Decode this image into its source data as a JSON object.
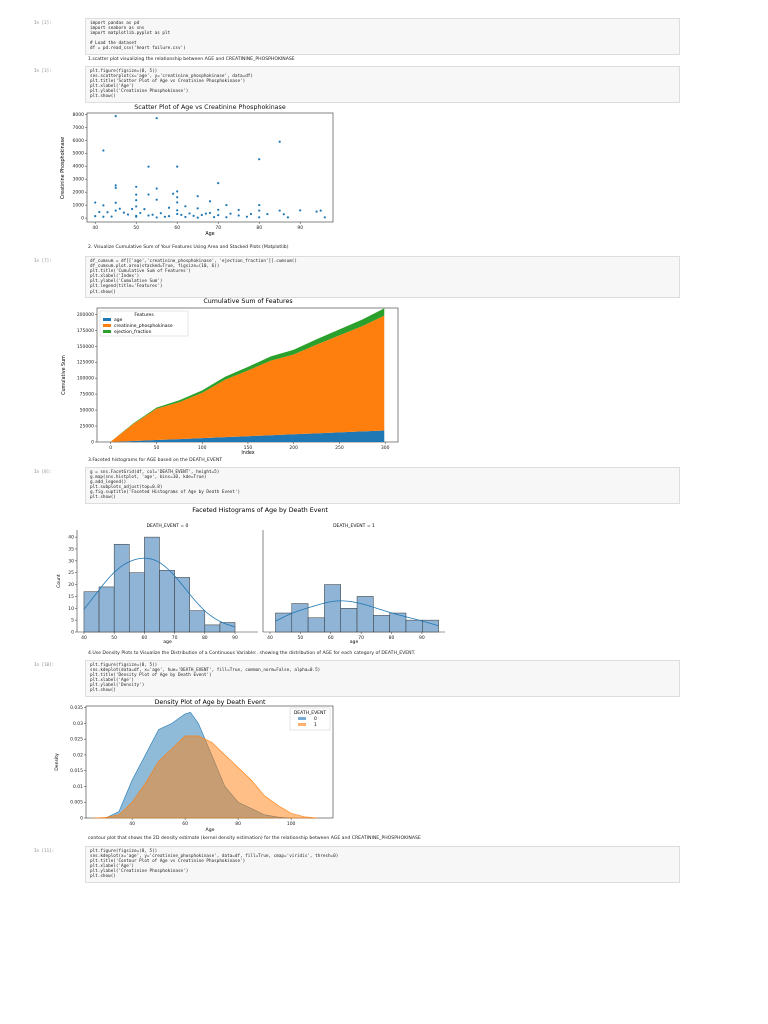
{
  "cells": [
    {
      "prompt": "In [2]:",
      "lines": [
        "import pandas as pd",
        "import seaborn as sns",
        "import matplotlib.pyplot as plt",
        "",
        "# Load the dataset",
        "df = pd.read_csv('heart failure.csv')"
      ]
    },
    {
      "prompt": "In [3]:",
      "lines": [
        "plt.figure(figsize=(8, 5))",
        "sns.scatterplot(x='age', y='creatinine_phosphokinase', data=df)",
        "plt.title('Scatter Plot of Age vs Creatinine Phosphokinase')",
        "plt.xlabel('Age')",
        "plt.ylabel('Creatinine Phosphokinase')",
        "plt.show()"
      ]
    },
    {
      "prompt": "In [7]:",
      "lines": [
        "df_cumsum = df[['age','creatinine_phosphokinase', 'ejection_fraction']].cumsum()",
        "df_cumsum.plot.area(stacked=True, figsize=(10, 6))",
        "plt.title('Cumulative Sum of Features')",
        "plt.xlabel('Index')",
        "plt.ylabel('Cumulative Sum')",
        "plt.legend(title='Features')",
        "plt.show()"
      ]
    },
    {
      "prompt": "In [8]:",
      "lines": [
        "g = sns.FacetGrid(df, col='DEATH_EVENT', height=5)",
        "g.map(sns.histplot, 'age', bins=10, kde=True)",
        "g.add_legend()",
        "plt.subplots_adjust(top=0.8)",
        "g.fig.suptitle('Faceted Histograms of Age by Death Event')",
        "plt.show()"
      ]
    },
    {
      "prompt": "In [10]:",
      "lines": [
        "plt.figure(figsize=(8, 5))",
        "sns.kdeplot(data=df, x='age', hue='DEATH_EVENT', fill=True, common_norm=False, alpha=0.5)",
        "plt.title('Density Plot of Age by Death Event')",
        "plt.xlabel('Age')",
        "plt.ylabel('Density')",
        "plt.show()"
      ]
    },
    {
      "prompt": "In [11]:",
      "lines": [
        "plt.figure(figsize=(8, 5))",
        "sns.kdeplot(x='age', y='creatinine_phosphokinase', data=df, fill=True, cmap='viridis', thresh=0)",
        "plt.title('Contour Plot of Age vs Creatinine Phosphokinase')",
        "plt.xlabel('Age')",
        "plt.ylabel('Creatinine Phosphokinase')",
        "plt.show()"
      ]
    }
  ],
  "markdown": [
    "1.scatter plot visualizing the relationship between AGE and CREATININE_PHOSPHOKINASE",
    "2. Visualize Cumulative Sum of Your Features Using Area and Stacked Plots (Matplotlib)",
    "3.Faceted histograms for AGE based on the DEATH_EVENT",
    "4.Use Density Plots to Visualize the Distribution of a Continuous Variable:. showing the distribution of AGE for each category of DEATH_EVENT.",
    "contour plot that shows the 2D density estimate (kernel density estimation) for the relationship between AGE and CREATININE_PHOSPHOKINASE"
  ],
  "chart_data": [
    {
      "type": "scatter",
      "title": "Scatter Plot of Age vs Creatinine Phosphokinase",
      "xlabel": "Age",
      "ylabel": "Creatinine Phosphokinase",
      "xlim": [
        38,
        98
      ],
      "ylim": [
        -300,
        8100
      ],
      "xticks": [
        40,
        50,
        60,
        70,
        80,
        90
      ],
      "yticks": [
        0,
        1000,
        2000,
        3000,
        4000,
        5000,
        6000,
        7000,
        8000
      ],
      "color": "#1f77b4",
      "points": [
        [
          45,
          7861
        ],
        [
          55,
          7702
        ],
        [
          42,
          5209
        ],
        [
          85,
          5882
        ],
        [
          80,
          4540
        ],
        [
          60,
          3966
        ],
        [
          53,
          3964
        ],
        [
          70,
          2695
        ],
        [
          45,
          2522
        ],
        [
          50,
          2413
        ],
        [
          55,
          2281
        ],
        [
          60,
          2060
        ],
        [
          45,
          2334
        ],
        [
          59,
          1876
        ],
        [
          50,
          1808
        ],
        [
          60,
          1610
        ],
        [
          65,
          1688
        ],
        [
          55,
          1419
        ],
        [
          53,
          1820
        ],
        [
          50,
          1380
        ],
        [
          60,
          1211
        ],
        [
          40,
          1199
        ],
        [
          45,
          1185
        ],
        [
          68,
          1300
        ],
        [
          72,
          1000
        ],
        [
          80,
          1000
        ],
        [
          62,
          910
        ],
        [
          50,
          900
        ],
        [
          42,
          980
        ],
        [
          58,
          800
        ],
        [
          46,
          720
        ],
        [
          49,
          700
        ],
        [
          65,
          750
        ],
        [
          52,
          690
        ],
        [
          70,
          640
        ],
        [
          60,
          600
        ],
        [
          75,
          630
        ],
        [
          80,
          582
        ],
        [
          85,
          580
        ],
        [
          90,
          600
        ],
        [
          95,
          581
        ],
        [
          94,
          500
        ],
        [
          41,
          470
        ],
        [
          43,
          450
        ],
        [
          47,
          420
        ],
        [
          51,
          400
        ],
        [
          56,
          380
        ],
        [
          63,
          360
        ],
        [
          67,
          350
        ],
        [
          73,
          340
        ],
        [
          78,
          320
        ],
        [
          82,
          310
        ],
        [
          86,
          300
        ],
        [
          48,
          280
        ],
        [
          54,
          260
        ],
        [
          61,
          250
        ],
        [
          66,
          240
        ],
        [
          70,
          230
        ],
        [
          75,
          200
        ],
        [
          40,
          150
        ],
        [
          44,
          120
        ],
        [
          50,
          110
        ],
        [
          57,
          100
        ],
        [
          62,
          90
        ],
        [
          69,
          80
        ],
        [
          72,
          70
        ],
        [
          80,
          60
        ],
        [
          87,
          60
        ],
        [
          55,
          50
        ],
        [
          65,
          40
        ],
        [
          58,
          150
        ],
        [
          60,
          320
        ],
        [
          64,
          170
        ],
        [
          53,
          200
        ],
        [
          45,
          580
        ],
        [
          50,
          170
        ],
        [
          42,
          102
        ],
        [
          96,
          60
        ],
        [
          68,
          400
        ],
        [
          77,
          109
        ]
      ]
    },
    {
      "type": "area",
      "title": "Cumulative Sum of Features",
      "xlabel": "Index",
      "ylabel": "Cumulative Sum",
      "legend_title": "Features",
      "legend_placement": "top-left",
      "xlim": [
        -15,
        314
      ],
      "ylim": [
        0,
        210000
      ],
      "xticks": [
        0,
        50,
        100,
        150,
        200,
        250,
        300
      ],
      "yticks": [
        0,
        25000,
        50000,
        75000,
        100000,
        125000,
        150000,
        175000,
        200000
      ],
      "x": [
        0,
        25,
        50,
        75,
        100,
        125,
        150,
        175,
        200,
        225,
        250,
        275,
        299
      ],
      "series": [
        {
          "name": "age",
          "color": "#1f77b4",
          "values": [
            75,
            1560,
            3060,
            4560,
            6060,
            7560,
            9060,
            10560,
            12060,
            13560,
            15060,
            16560,
            18000
          ]
        },
        {
          "name": "creatinine_phosphokinase",
          "color": "#ff7f0e",
          "values": [
            582,
            27000,
            49000,
            58000,
            71000,
            90000,
            103000,
            117000,
            125000,
            139000,
            152000,
            165000,
            180000
          ]
        },
        {
          "name": "ejection_fraction",
          "color": "#2ca02c",
          "values": [
            20,
            950,
            1900,
            2850,
            3800,
            4750,
            5700,
            6650,
            7600,
            8550,
            9500,
            10450,
            11400
          ]
        }
      ]
    },
    {
      "type": "bar",
      "title": "Faceted Histograms of Age by Death Event",
      "xlabel": "age",
      "ylabel": "Count",
      "color": "#1f77b4",
      "facets": [
        {
          "title": "DEATH_EVENT = 0",
          "bin_start": 40,
          "bin_width": 5,
          "values": [
            17,
            19,
            37,
            25,
            40,
            26,
            23,
            9,
            3,
            4
          ]
        },
        {
          "title": "DEATH_EVENT = 1",
          "bin_start": 41.8,
          "bin_width": 5.37,
          "values": [
            8,
            12,
            6,
            20,
            10,
            15,
            7,
            8,
            5,
            5
          ]
        }
      ],
      "xlim": [
        37.7,
        97.6
      ],
      "ylim": [
        0,
        43
      ],
      "xticks": [
        40,
        50,
        60,
        70,
        80,
        90
      ],
      "yticks": [
        0,
        5,
        10,
        15,
        20,
        25,
        30,
        35,
        40
      ]
    },
    {
      "type": "area",
      "title": "Density Plot of Age by Death Event",
      "xlabel": "Age",
      "ylabel": "Density",
      "legend_title": "DEATH_EVENT",
      "legend_placement": "top-right",
      "xlim": [
        22.6,
        115.8
      ],
      "ylim": [
        0,
        0.0355
      ],
      "xticks": [
        40,
        60,
        80,
        100
      ],
      "yticks": [
        0,
        0.005,
        0.01,
        0.015,
        0.02,
        0.025,
        0.03,
        0.035
      ],
      "series": [
        {
          "name": "0",
          "color": "#1f77b4",
          "x": [
            30,
            35,
            40,
            45,
            50,
            55,
            60,
            62,
            65,
            70,
            75,
            80,
            85,
            90,
            95,
            100
          ],
          "values": [
            0,
            0.002,
            0.012,
            0.02,
            0.028,
            0.03,
            0.033,
            0.0335,
            0.03,
            0.02,
            0.01,
            0.005,
            0.003,
            0.001,
            0.0003,
            0
          ]
        },
        {
          "name": "1",
          "color": "#ff7f0e",
          "x": [
            25,
            30,
            35,
            40,
            45,
            50,
            55,
            60,
            65,
            70,
            75,
            80,
            85,
            90,
            95,
            100,
            105,
            110
          ],
          "values": [
            0,
            0.0002,
            0.001,
            0.005,
            0.011,
            0.018,
            0.022,
            0.026,
            0.026,
            0.024,
            0.02,
            0.016,
            0.012,
            0.007,
            0.004,
            0.0015,
            0.0004,
            0
          ]
        }
      ]
    }
  ]
}
